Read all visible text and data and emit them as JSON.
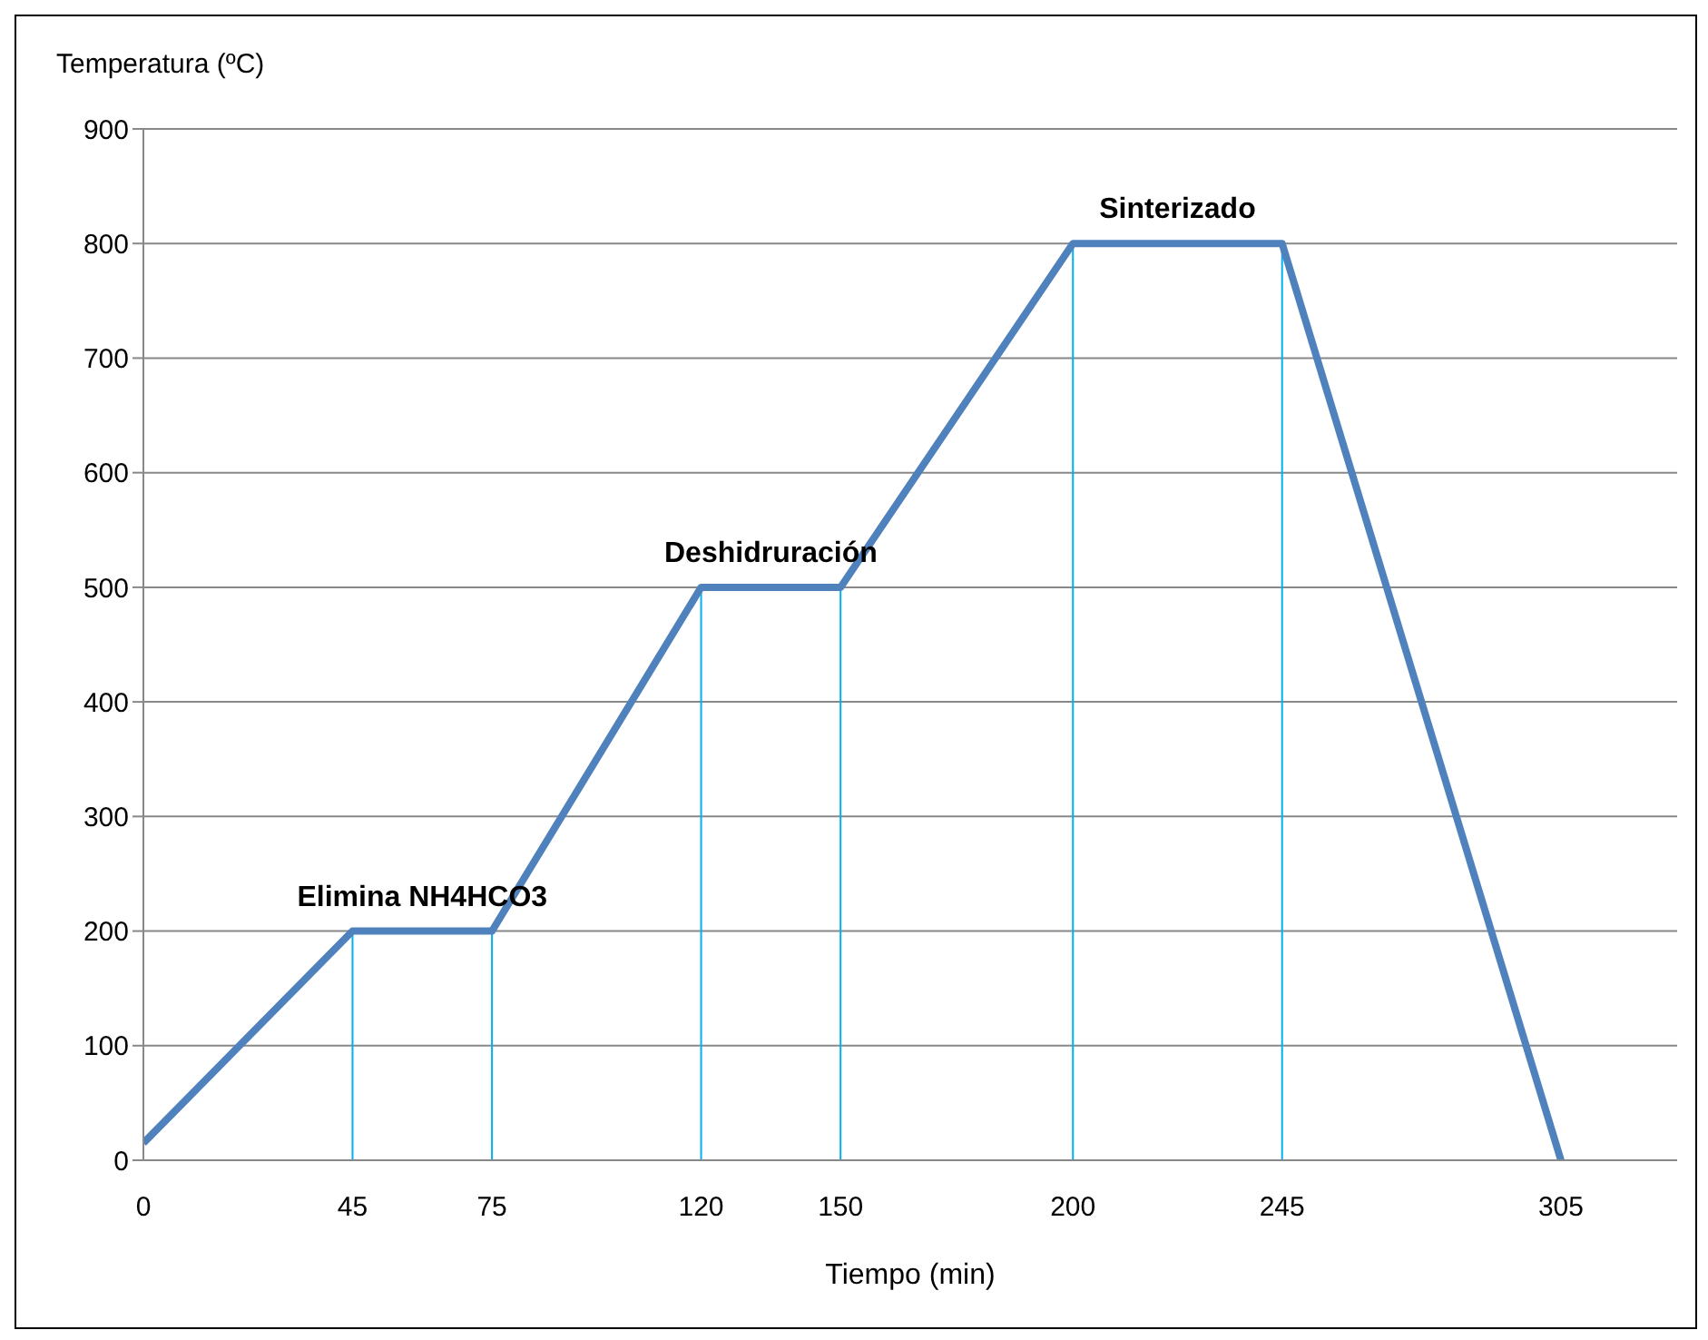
{
  "chart_data": {
    "type": "line",
    "xlabel": "Tiempo (min)",
    "ylabel": "Temperatura (ºC)",
    "x": [
      0,
      45,
      75,
      120,
      150,
      200,
      245,
      305
    ],
    "series": [
      {
        "color": "#4f81bd",
        "values": [
          15,
          200,
          200,
          500,
          500,
          800,
          800,
          0
        ]
      }
    ],
    "xlim": [
      0,
      330
    ],
    "xticks": [
      0,
      45,
      75,
      120,
      150,
      200,
      245,
      305
    ],
    "ylim": [
      0,
      900
    ],
    "yticks": [
      0,
      100,
      200,
      300,
      400,
      500,
      600,
      700,
      800,
      900
    ],
    "grid": "y",
    "marker": "none",
    "line_style": "solid",
    "legend": false,
    "ref_lines": [
      {
        "axis": "x",
        "value": 45,
        "color": "#00b0f0"
      },
      {
        "axis": "x",
        "value": 75,
        "color": "#00b0f0"
      },
      {
        "axis": "x",
        "value": 120,
        "color": "#00b0f0"
      },
      {
        "axis": "x",
        "value": 150,
        "color": "#00b0f0"
      },
      {
        "axis": "x",
        "value": 200,
        "color": "#00b0f0"
      },
      {
        "axis": "x",
        "value": 245,
        "color": "#00b0f0"
      }
    ],
    "annotations": [
      {
        "text": "Elimina NH4HCO3",
        "x": 60,
        "y": 200
      },
      {
        "text": "Deshidruración",
        "x": 135,
        "y": 500
      },
      {
        "text": "Sinterizado",
        "x": 222.5,
        "y": 800
      }
    ]
  }
}
